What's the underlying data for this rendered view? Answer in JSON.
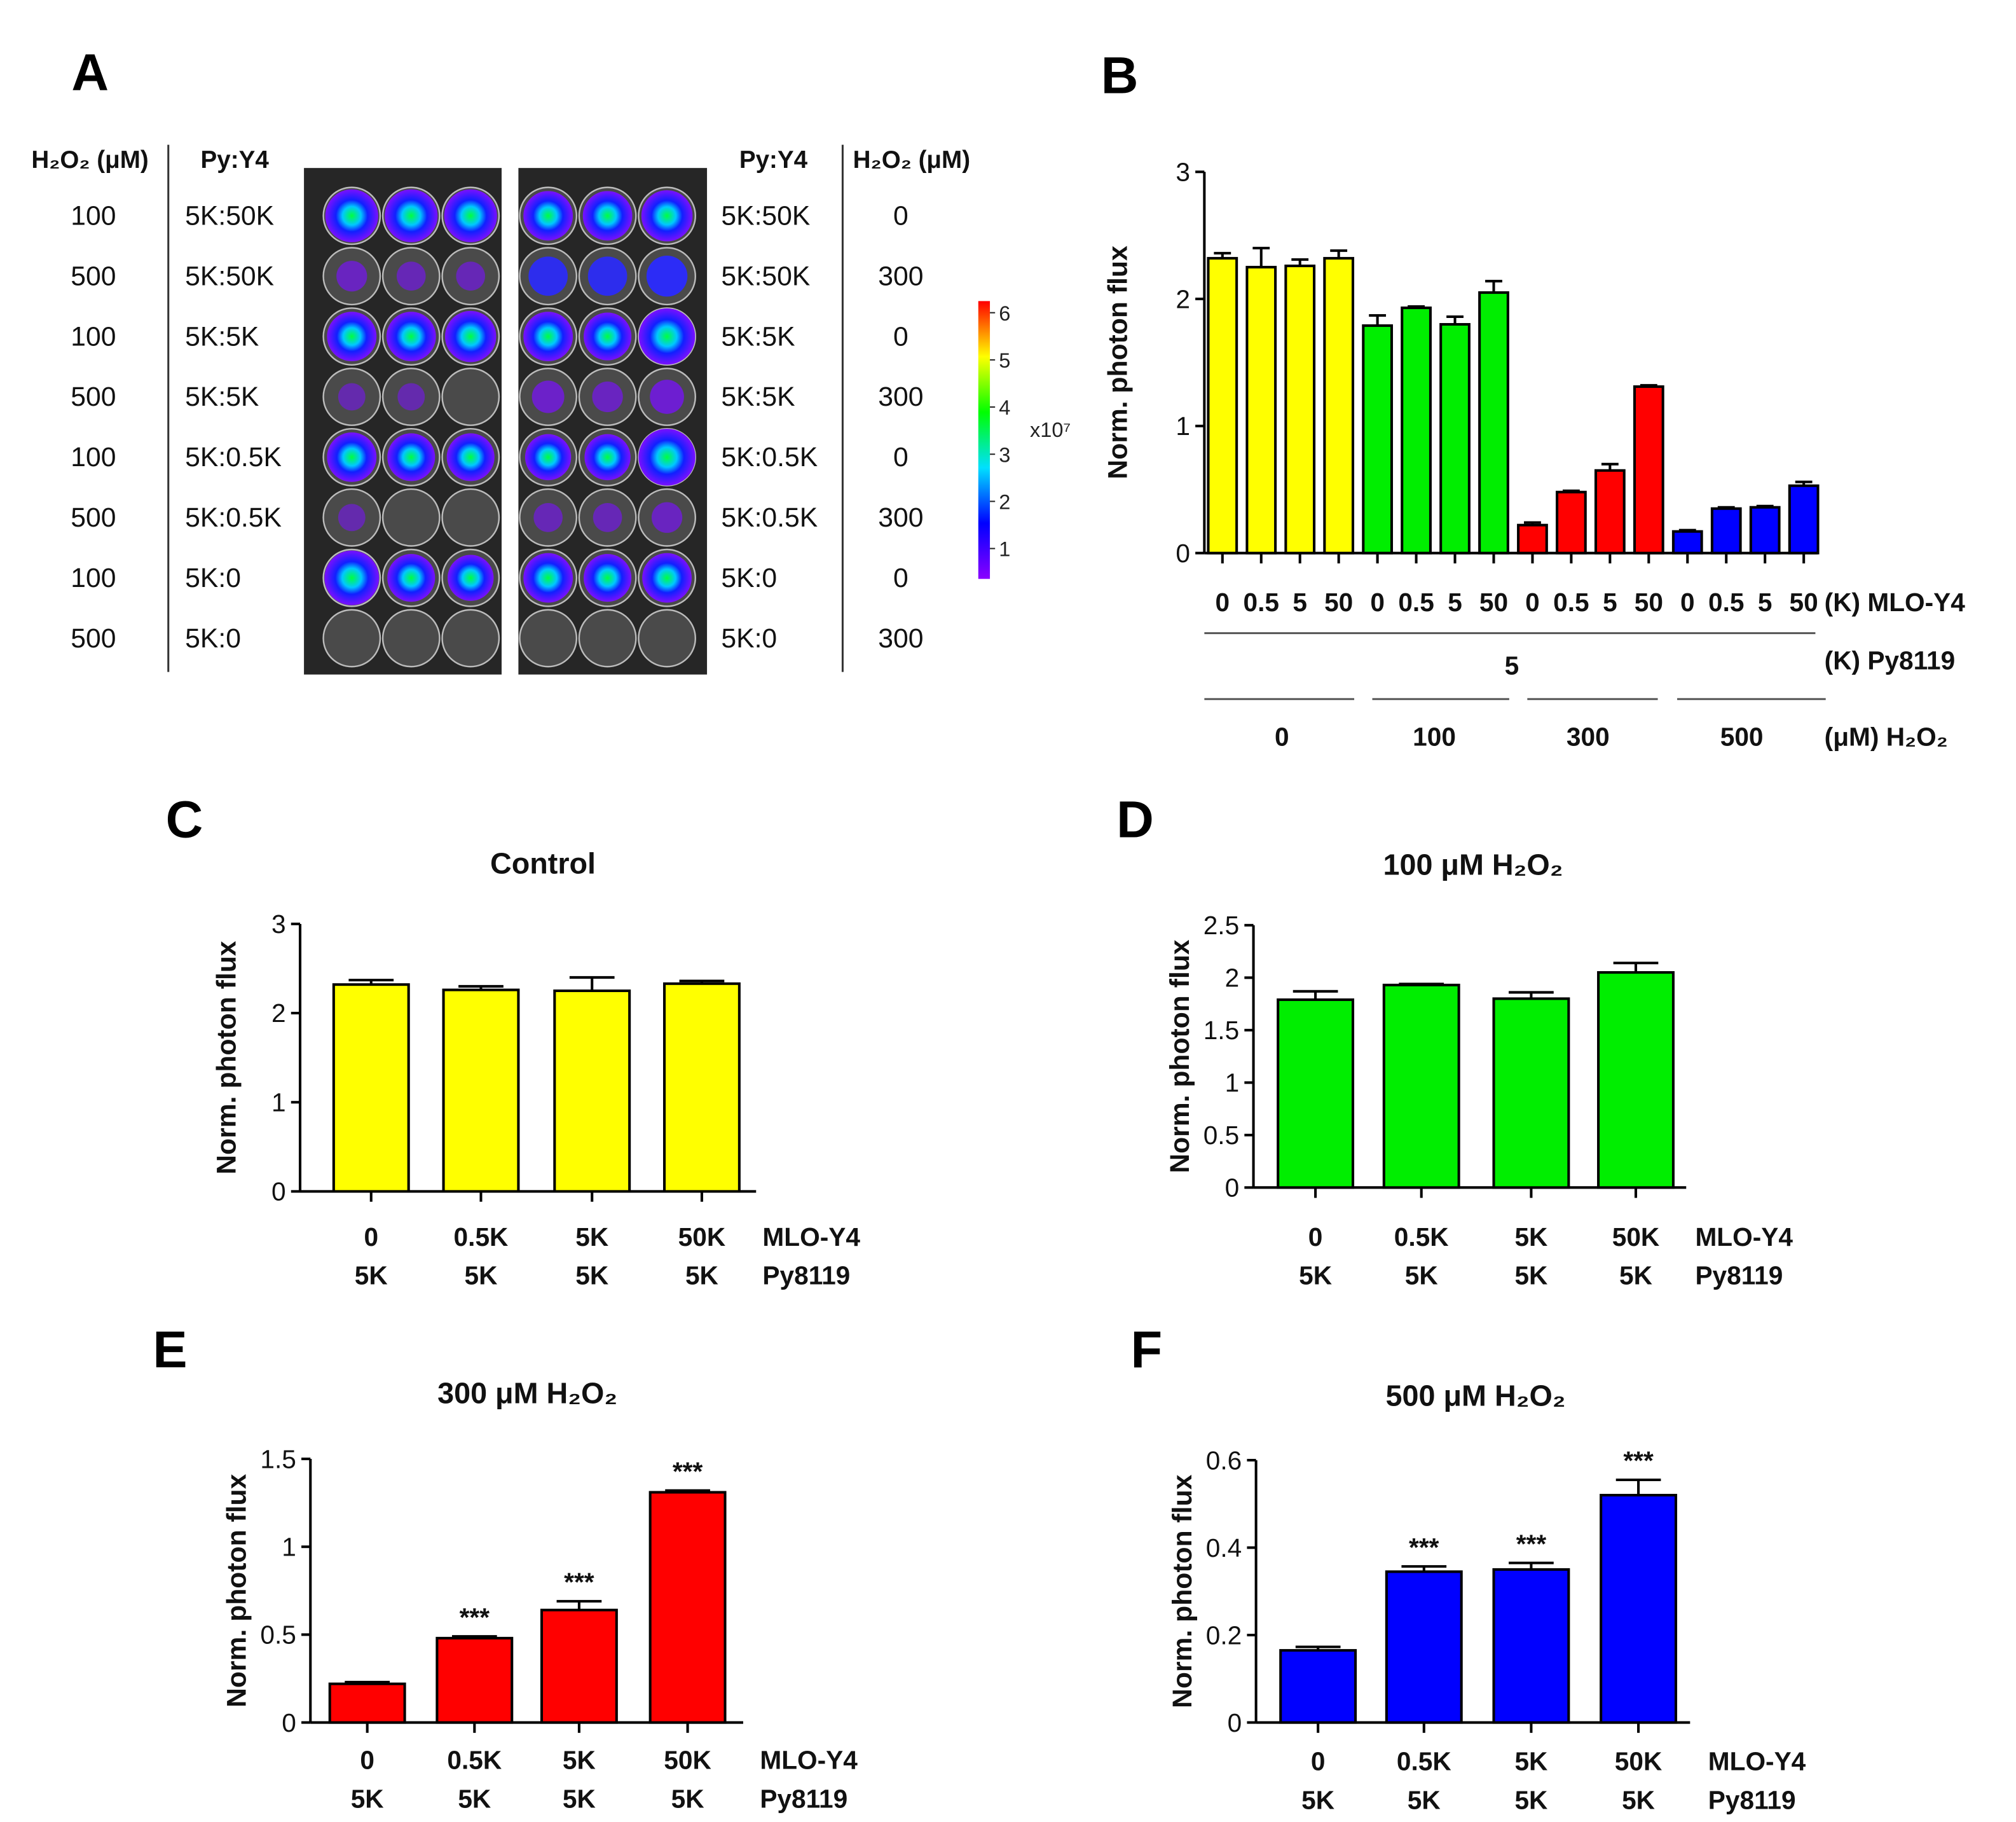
{
  "panels": {
    "a": "A",
    "b": "B",
    "c": "C",
    "d": "D",
    "e": "E",
    "f": "F"
  },
  "plate": {
    "left_headers": {
      "h2o2": "H₂O₂ (μM)",
      "pyy4": "Py:Y4"
    },
    "right_headers": {
      "pyy4": "Py:Y4",
      "h2o2": "H₂O₂ (μM)"
    },
    "left_h2o2": [
      "100",
      "500",
      "100",
      "500",
      "100",
      "500",
      "100",
      "500"
    ],
    "left_ratio": [
      "5K:50K",
      "5K:50K",
      "5K:5K",
      "5K:5K",
      "5K:0.5K",
      "5K:0.5K",
      "5K:0",
      "5K:0"
    ],
    "right_ratio": [
      "5K:50K",
      "5K:50K",
      "5K:5K",
      "5K:5K",
      "5K:0.5K",
      "5K:0.5K",
      "5K:0",
      "5K:0"
    ],
    "right_h2o2": [
      "0",
      "300",
      "0",
      "300",
      "0",
      "300",
      "0",
      "300"
    ],
    "signal": [
      [
        0.8,
        0.8,
        0.8,
        0.7,
        0.7,
        0.75
      ],
      [
        0.15,
        0.1,
        0.1,
        0.4,
        0.4,
        0.45
      ],
      [
        0.7,
        0.7,
        0.75,
        0.7,
        0.65,
        0.9
      ],
      [
        0.05,
        0.05,
        0.0,
        0.2,
        0.15,
        0.25
      ],
      [
        0.7,
        0.65,
        0.65,
        0.6,
        0.6,
        0.95
      ],
      [
        0.05,
        0.0,
        0.0,
        0.1,
        0.1,
        0.15
      ],
      [
        0.85,
        0.65,
        0.6,
        0.7,
        0.65,
        0.7
      ],
      [
        0.0,
        0.0,
        0.0,
        0.0,
        0.0,
        0.0
      ]
    ],
    "colorbar": {
      "ticks": [
        "6",
        "5",
        "4",
        "3",
        "2",
        "1"
      ],
      "unit": "x10⁷"
    }
  },
  "colors": {
    "yellow": "#ffff00",
    "green": "#00ee00",
    "red": "#ff0000",
    "blue": "#0000ff"
  },
  "chart_data": [
    {
      "id": "B",
      "type": "bar",
      "title": "",
      "ylabel": "Norm. photon flux",
      "ylim": [
        0,
        3
      ],
      "yticks": [
        "0",
        "1",
        "2",
        "3"
      ],
      "categories": [
        "0",
        "0.5",
        "5",
        "50",
        "0",
        "0.5",
        "5",
        "50",
        "0",
        "0.5",
        "5",
        "50",
        "0",
        "0.5",
        "5",
        "50"
      ],
      "values": [
        2.32,
        2.25,
        2.26,
        2.32,
        1.79,
        1.93,
        1.8,
        2.05,
        0.22,
        0.48,
        0.65,
        1.31,
        0.17,
        0.35,
        0.36,
        0.53
      ],
      "errors": [
        0.04,
        0.15,
        0.05,
        0.06,
        0.08,
        0.01,
        0.06,
        0.09,
        0.02,
        0.01,
        0.05,
        0.01,
        0.01,
        0.01,
        0.01,
        0.03
      ],
      "bar_colors": [
        "#ffff00",
        "#ffff00",
        "#ffff00",
        "#ffff00",
        "#00ee00",
        "#00ee00",
        "#00ee00",
        "#00ee00",
        "#ff0000",
        "#ff0000",
        "#ff0000",
        "#ff0000",
        "#0000ff",
        "#0000ff",
        "#0000ff",
        "#0000ff"
      ],
      "row_labels": {
        "mlo": "(K) MLO-Y4",
        "py": "(K) Py8119",
        "h2o2": "(μM) H₂O₂"
      },
      "py_value": "5",
      "h2o2_groups": [
        "0",
        "100",
        "300",
        "500"
      ]
    },
    {
      "id": "C",
      "type": "bar",
      "title": "Control",
      "ylabel": "Norm. photon flux",
      "ylim": [
        0,
        3
      ],
      "yticks": [
        "0",
        "1",
        "2",
        "3"
      ],
      "categories": [
        "0",
        "0.5K",
        "5K",
        "50K"
      ],
      "categories2": [
        "5K",
        "5K",
        "5K",
        "5K"
      ],
      "row_labels": [
        "MLO-Y4",
        "Py8119"
      ],
      "values": [
        2.32,
        2.26,
        2.25,
        2.33
      ],
      "errors": [
        0.05,
        0.04,
        0.15,
        0.03
      ],
      "color": "#ffff00",
      "annotations": [
        "",
        "",
        "",
        ""
      ]
    },
    {
      "id": "D",
      "type": "bar",
      "title": "100 μM H₂O₂",
      "ylabel": "Norm. photon flux",
      "ylim": [
        0,
        2.5
      ],
      "yticks": [
        "0",
        "0.5",
        "1",
        "1.5",
        "2",
        "2.5"
      ],
      "categories": [
        "0",
        "0.5K",
        "5K",
        "50K"
      ],
      "categories2": [
        "5K",
        "5K",
        "5K",
        "5K"
      ],
      "row_labels": [
        "MLO-Y4",
        "Py8119"
      ],
      "values": [
        1.79,
        1.93,
        1.8,
        2.05
      ],
      "errors": [
        0.08,
        0.01,
        0.06,
        0.09
      ],
      "color": "#00ee00",
      "annotations": [
        "",
        "",
        "",
        ""
      ]
    },
    {
      "id": "E",
      "type": "bar",
      "title": "300 μM H₂O₂",
      "ylabel": "Norm. photon flux",
      "ylim": [
        0,
        1.5
      ],
      "yticks": [
        "0",
        "0.5",
        "1",
        "1.5"
      ],
      "categories": [
        "0",
        "0.5K",
        "5K",
        "50K"
      ],
      "categories2": [
        "5K",
        "5K",
        "5K",
        "5K"
      ],
      "row_labels": [
        "MLO-Y4",
        "Py8119"
      ],
      "values": [
        0.22,
        0.48,
        0.64,
        1.31
      ],
      "errors": [
        0.01,
        0.01,
        0.05,
        0.01
      ],
      "color": "#ff0000",
      "annotations": [
        "",
        "***",
        "***",
        "***"
      ]
    },
    {
      "id": "F",
      "type": "bar",
      "title": "500 μM H₂O₂",
      "ylabel": "Norm. photon flux",
      "ylim": [
        0,
        0.6
      ],
      "yticks": [
        "0",
        "0.2",
        "0.4",
        "0.6"
      ],
      "categories": [
        "0",
        "0.5K",
        "5K",
        "50K"
      ],
      "categories2": [
        "5K",
        "5K",
        "5K",
        "5K"
      ],
      "row_labels": [
        "MLO-Y4",
        "Py8119"
      ],
      "values": [
        0.165,
        0.345,
        0.35,
        0.52
      ],
      "errors": [
        0.008,
        0.012,
        0.015,
        0.035
      ],
      "color": "#0000ff",
      "annotations": [
        "",
        "***",
        "***",
        "***"
      ]
    }
  ]
}
